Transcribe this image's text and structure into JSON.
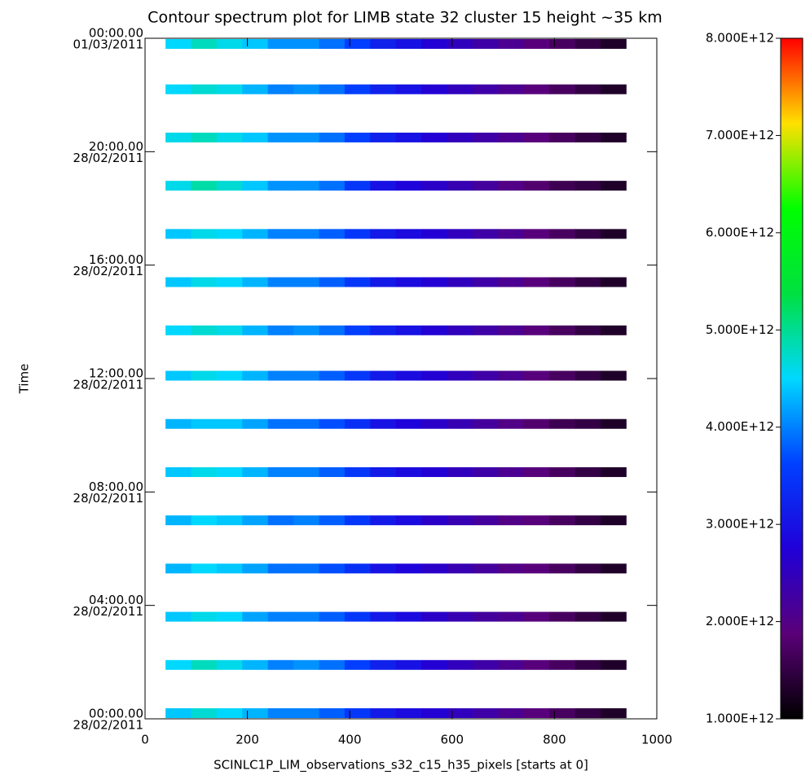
{
  "chart_data": {
    "type": "heatmap",
    "title": "Contour spectrum plot for LIMB state 32 cluster 15 height ~35 km",
    "x_label": "SCINLC1P_LIM_observations_s32_c15_h35_pixels [starts at 0]",
    "y_label": "Time",
    "xlim": [
      0,
      1000
    ],
    "xticks": [
      0,
      200,
      400,
      600,
      800,
      1000
    ],
    "ylim": [
      0,
      24
    ],
    "yticks": [
      {
        "value": 0,
        "label": "00:00.00"
      },
      {
        "value": 4,
        "label": "04:00.00"
      },
      {
        "value": 8,
        "label": "08:00.00"
      },
      {
        "value": 12,
        "label": "12:00.00"
      },
      {
        "value": 16,
        "label": "16:00.00"
      },
      {
        "value": 20,
        "label": "20:00.00"
      },
      {
        "value": 24,
        "label": "00:00.00"
      }
    ],
    "ytick_dates": [
      "28/02/2011",
      "28/02/2011",
      "28/02/2011",
      "28/02/2011",
      "28/02/2011",
      "28/02/2011",
      "01/03/2011"
    ],
    "x_bins": [
      40,
      90,
      140,
      190,
      240,
      290,
      340,
      390,
      440,
      490,
      540,
      590,
      640,
      690,
      740,
      790,
      840,
      890,
      940
    ],
    "rows": [
      0.2,
      1.9,
      3.6,
      5.3,
      7.0,
      8.7,
      10.4,
      12.1,
      13.7,
      15.4,
      17.1,
      18.8,
      20.5,
      22.2,
      23.8
    ],
    "z": [
      [
        4400000000000.0,
        4700000000000.0,
        4500000000000.0,
        4300000000000.0,
        4000000000000.0,
        4000000000000.0,
        3800000000000.0,
        3500000000000.0,
        3100000000000.0,
        2900000000000.0,
        2700000000000.0,
        2500000000000.0,
        2300000000000.0,
        2100000000000.0,
        1900000000000.0,
        1700000000000.0,
        1500000000000.0,
        1300000000000.0
      ],
      [
        4500000000000.0,
        4800000000000.0,
        4600000000000.0,
        4300000000000.0,
        4000000000000.0,
        4100000000000.0,
        3900000000000.0,
        3600000000000.0,
        3200000000000.0,
        3000000000000.0,
        2700000000000.0,
        2500000000000.0,
        2300000000000.0,
        2100000000000.0,
        1900000000000.0,
        1700000000000.0,
        1500000000000.0,
        1300000000000.0
      ],
      [
        4400000000000.0,
        4600000000000.0,
        4500000000000.0,
        4200000000000.0,
        4000000000000.0,
        4000000000000.0,
        3800000000000.0,
        3500000000000.0,
        3100000000000.0,
        2900000000000.0,
        2600000000000.0,
        2400000000000.0,
        2200000000000.0,
        2100000000000.0,
        1900000000000.0,
        1700000000000.0,
        1500000000000.0,
        1300000000000.0
      ],
      [
        4300000000000.0,
        4500000000000.0,
        4400000000000.0,
        4200000000000.0,
        3900000000000.0,
        3900000000000.0,
        3700000000000.0,
        3400000000000.0,
        3000000000000.0,
        2800000000000.0,
        2600000000000.0,
        2400000000000.0,
        2200000000000.0,
        2000000000000.0,
        1900000000000.0,
        1700000000000.0,
        1500000000000.0,
        1300000000000.0
      ],
      [
        4300000000000.0,
        4500000000000.0,
        4400000000000.0,
        4200000000000.0,
        3900000000000.0,
        4000000000000.0,
        3800000000000.0,
        3500000000000.0,
        3100000000000.0,
        2900000000000.0,
        2600000000000.0,
        2400000000000.0,
        2200000000000.0,
        2000000000000.0,
        1900000000000.0,
        1700000000000.0,
        1500000000000.0,
        1300000000000.0
      ],
      [
        4400000000000.0,
        4600000000000.0,
        4500000000000.0,
        4300000000000.0,
        4000000000000.0,
        4000000000000.0,
        3800000000000.0,
        3500000000000.0,
        3100000000000.0,
        2900000000000.0,
        2700000000000.0,
        2500000000000.0,
        2300000000000.0,
        2100000000000.0,
        1900000000000.0,
        1700000000000.0,
        1500000000000.0,
        1300000000000.0
      ],
      [
        4300000000000.0,
        4400000000000.0,
        4400000000000.0,
        4200000000000.0,
        3900000000000.0,
        3900000000000.0,
        3700000000000.0,
        3400000000000.0,
        3000000000000.0,
        2800000000000.0,
        2600000000000.0,
        2400000000000.0,
        2200000000000.0,
        2000000000000.0,
        1800000000000.0,
        1600000000000.0,
        1500000000000.0,
        1300000000000.0
      ],
      [
        4400000000000.0,
        4600000000000.0,
        4500000000000.0,
        4300000000000.0,
        4000000000000.0,
        4000000000000.0,
        3800000000000.0,
        3500000000000.0,
        3100000000000.0,
        2900000000000.0,
        2700000000000.0,
        2500000000000.0,
        2300000000000.0,
        2100000000000.0,
        1900000000000.0,
        1700000000000.0,
        1500000000000.0,
        1300000000000.0
      ],
      [
        4500000000000.0,
        4700000000000.0,
        4600000000000.0,
        4300000000000.0,
        4000000000000.0,
        4100000000000.0,
        3900000000000.0,
        3600000000000.0,
        3200000000000.0,
        3000000000000.0,
        2700000000000.0,
        2500000000000.0,
        2300000000000.0,
        2100000000000.0,
        1900000000000.0,
        1700000000000.0,
        1500000000000.0,
        1300000000000.0
      ],
      [
        4400000000000.0,
        4600000000000.0,
        4500000000000.0,
        4300000000000.0,
        4000000000000.0,
        4000000000000.0,
        3800000000000.0,
        3500000000000.0,
        3100000000000.0,
        2900000000000.0,
        2700000000000.0,
        2500000000000.0,
        2300000000000.0,
        2100000000000.0,
        1900000000000.0,
        1700000000000.0,
        1500000000000.0,
        1300000000000.0
      ],
      [
        4400000000000.0,
        4600000000000.0,
        4500000000000.0,
        4300000000000.0,
        4000000000000.0,
        4000000000000.0,
        3800000000000.0,
        3500000000000.0,
        3100000000000.0,
        2900000000000.0,
        2700000000000.0,
        2500000000000.0,
        2300000000000.0,
        2100000000000.0,
        1900000000000.0,
        1700000000000.0,
        1500000000000.0,
        1300000000000.0
      ],
      [
        4600000000000.0,
        4900000000000.0,
        4700000000000.0,
        4400000000000.0,
        4100000000000.0,
        4100000000000.0,
        3900000000000.0,
        3500000000000.0,
        3000000000000.0,
        2800000000000.0,
        2600000000000.0,
        2400000000000.0,
        2200000000000.0,
        2000000000000.0,
        1800000000000.0,
        1600000000000.0,
        1500000000000.0,
        1300000000000.0
      ],
      [
        4600000000000.0,
        4800000000000.0,
        4600000000000.0,
        4400000000000.0,
        4100000000000.0,
        4100000000000.0,
        3900000000000.0,
        3600000000000.0,
        3200000000000.0,
        3000000000000.0,
        2700000000000.0,
        2500000000000.0,
        2300000000000.0,
        2100000000000.0,
        1900000000000.0,
        1700000000000.0,
        1500000000000.0,
        1300000000000.0
      ],
      [
        4500000000000.0,
        4700000000000.0,
        4600000000000.0,
        4300000000000.0,
        4000000000000.0,
        4100000000000.0,
        3900000000000.0,
        3600000000000.0,
        3200000000000.0,
        3000000000000.0,
        2700000000000.0,
        2500000000000.0,
        2300000000000.0,
        2100000000000.0,
        1900000000000.0,
        1700000000000.0,
        1500000000000.0,
        1300000000000.0
      ],
      [
        4500000000000.0,
        4800000000000.0,
        4600000000000.0,
        4400000000000.0,
        4100000000000.0,
        4100000000000.0,
        3900000000000.0,
        3600000000000.0,
        3200000000000.0,
        3000000000000.0,
        2700000000000.0,
        2500000000000.0,
        2300000000000.0,
        2100000000000.0,
        1900000000000.0,
        1700000000000.0,
        1500000000000.0,
        1300000000000.0
      ]
    ],
    "zlim": [
      1000000000000.0,
      8000000000000.0
    ],
    "zticks": [
      {
        "value": 1000000000000.0,
        "label": "1.000E+12"
      },
      {
        "value": 2000000000000.0,
        "label": "2.000E+12"
      },
      {
        "value": 3000000000000.0,
        "label": "3.000E+12"
      },
      {
        "value": 4000000000000.0,
        "label": "4.000E+12"
      },
      {
        "value": 5000000000000.0,
        "label": "5.000E+12"
      },
      {
        "value": 6000000000000.0,
        "label": "6.000E+12"
      },
      {
        "value": 7000000000000.0,
        "label": "7.000E+12"
      },
      {
        "value": 8000000000000.0,
        "label": "8.000E+12"
      }
    ],
    "colormap": [
      "#000000",
      "#5a0078",
      "#2000d8",
      "#0040ff",
      "#00d8ff",
      "#00e040",
      "#00ff00",
      "#ffe000",
      "#ff0000"
    ]
  }
}
